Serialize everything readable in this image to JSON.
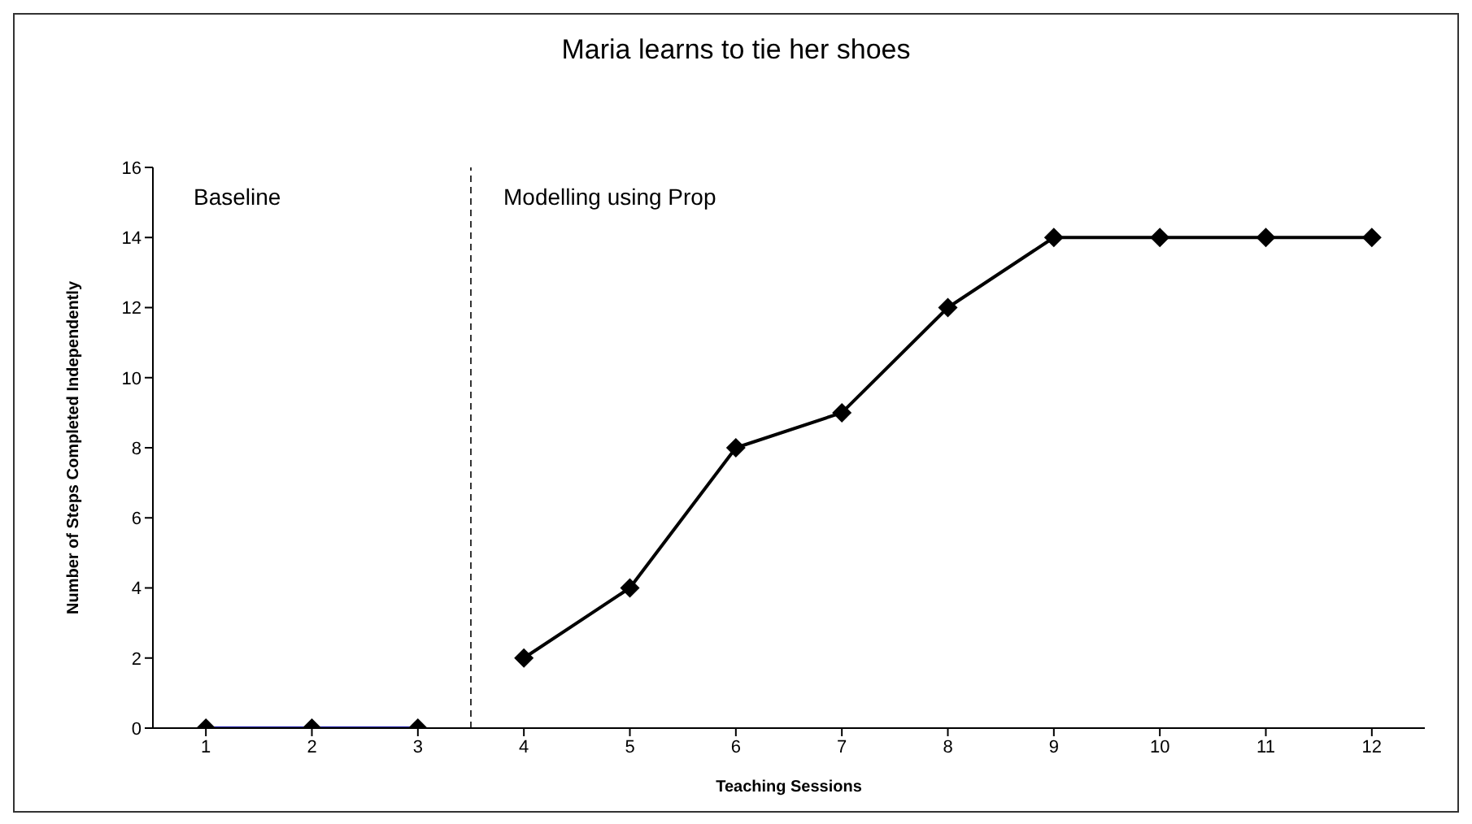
{
  "chart_data": {
    "type": "line",
    "title": "Maria learns to tie her shoes",
    "xlabel": "Teaching Sessions",
    "ylabel": "Number of Steps Completed Independently",
    "annotations": [
      "Baseline",
      "Modelling using Prop"
    ],
    "series": [
      {
        "x": [
          1,
          2,
          3
        ],
        "values": [
          0,
          0,
          0
        ],
        "color": "#000099"
      },
      {
        "x": [
          4,
          5,
          6,
          7,
          8,
          9,
          10,
          11,
          12
        ],
        "values": [
          2,
          4,
          8,
          9,
          12,
          14,
          14,
          14,
          14
        ],
        "color": "#000000"
      }
    ],
    "xlim": [
      0.5,
      12.5
    ],
    "xticks": [
      1,
      2,
      3,
      4,
      5,
      6,
      7,
      8,
      9,
      10,
      11,
      12
    ],
    "ylim": [
      0,
      16
    ],
    "yticks": [
      0,
      2,
      4,
      6,
      8,
      10,
      12,
      14,
      16
    ],
    "ref_lines": [
      {
        "axis": "x",
        "value": 3.5,
        "color": "#333333",
        "line_style": "dashed"
      }
    ],
    "marker": "diamond",
    "line_style": "solid",
    "grid": false,
    "legend": false
  }
}
